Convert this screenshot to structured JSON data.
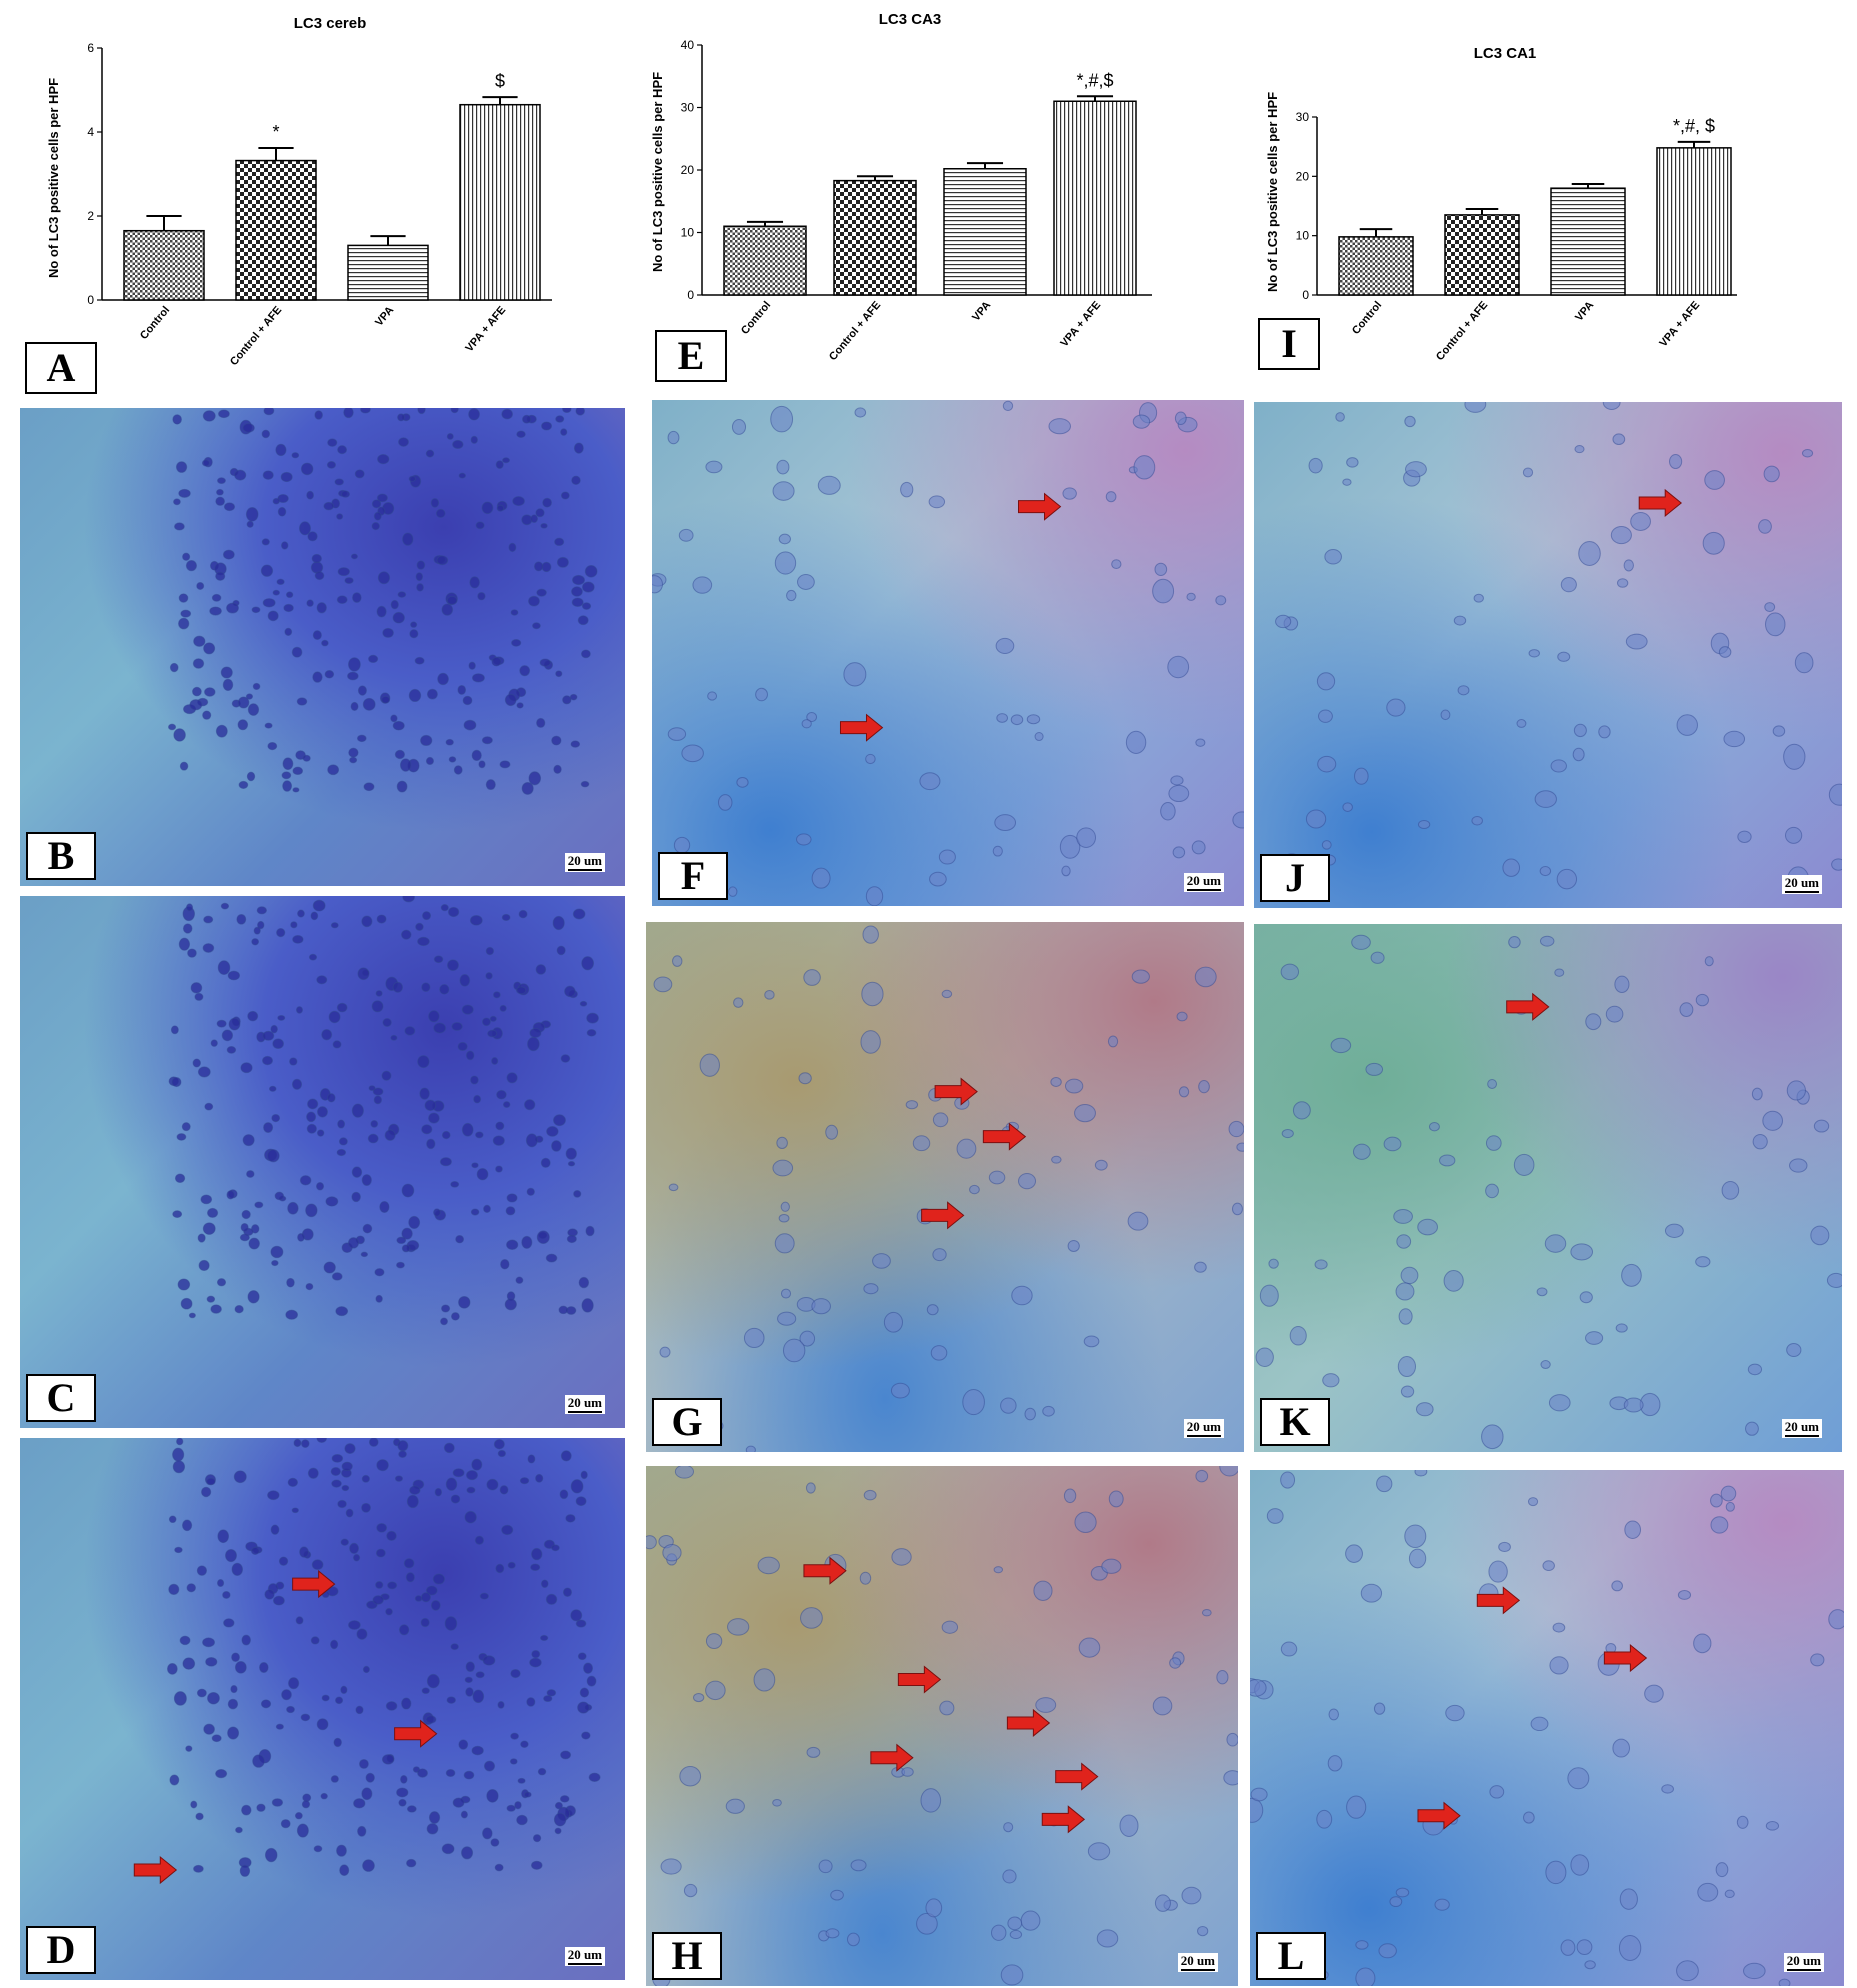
{
  "chart_data": [
    {
      "type": "bar",
      "panel": "A",
      "title": "LC3 cereb",
      "ylabel": "No of LC3 positive cells per HPF",
      "xlabel": "",
      "categories": [
        "Control",
        "Control + AFE",
        "VPA",
        "VPA + AFE"
      ],
      "values": [
        1.65,
        3.32,
        1.3,
        4.65
      ],
      "errors": [
        0.35,
        0.3,
        0.22,
        0.18
      ],
      "annotations": [
        "",
        "*",
        "",
        "$"
      ],
      "ylim": [
        0,
        6
      ],
      "yticks": [
        0,
        2,
        4,
        6
      ],
      "grid": false
    },
    {
      "type": "bar",
      "panel": "E",
      "title": "LC3 CA3",
      "ylabel": "No of LC3 positive cells per HPF",
      "xlabel": "",
      "categories": [
        "Control",
        "Control + AFE",
        "VPA",
        "VPA + AFE"
      ],
      "values": [
        11.0,
        18.3,
        20.2,
        31.0
      ],
      "errors": [
        0.7,
        0.7,
        0.9,
        0.8
      ],
      "annotations": [
        "",
        "",
        "",
        "*,#,$"
      ],
      "ylim": [
        0,
        40
      ],
      "yticks": [
        0,
        10,
        20,
        30,
        40
      ],
      "grid": false
    },
    {
      "type": "bar",
      "panel": "I",
      "title": "LC3 CA1",
      "ylabel": "No of LC3 positive cells per HPF",
      "xlabel": "",
      "categories": [
        "Control",
        "Control + AFE",
        "VPA",
        "VPA + AFE"
      ],
      "values": [
        9.8,
        13.5,
        18.0,
        24.8
      ],
      "errors": [
        1.3,
        1.0,
        0.7,
        1.0
      ],
      "annotations": [
        "",
        "",
        "",
        "*,#, $"
      ],
      "ylim": [
        0,
        30
      ],
      "yticks": [
        0,
        10,
        20,
        30
      ],
      "grid": false
    }
  ],
  "panel_letters": {
    "a": "A",
    "e": "E",
    "i": "I"
  },
  "micrographs": [
    {
      "letter": "B",
      "scale": "20 um",
      "theme": "cereb",
      "arrows": []
    },
    {
      "letter": "C",
      "scale": "20 um",
      "theme": "cereb",
      "arrows": []
    },
    {
      "letter": "D",
      "scale": "20 um",
      "theme": "cereb",
      "arrows": [
        3
      ]
    },
    {
      "letter": "F",
      "scale": "20 um",
      "theme": "hippo",
      "arrows": [
        2
      ]
    },
    {
      "letter": "G",
      "scale": "20 um",
      "theme": "hippo-brown",
      "arrows": [
        3
      ]
    },
    {
      "letter": "H",
      "scale": "20 um",
      "theme": "hippo-brown",
      "arrows": [
        6
      ]
    },
    {
      "letter": "J",
      "scale": "20 um",
      "theme": "hippo",
      "arrows": [
        1
      ]
    },
    {
      "letter": "K",
      "scale": "20 um",
      "theme": "hippo-green",
      "arrows": [
        1
      ]
    },
    {
      "letter": "L",
      "scale": "20 um",
      "theme": "hippo",
      "arrows": [
        3
      ]
    }
  ],
  "colors": {
    "arrow": "#e0231c",
    "bar_edge": "#000000"
  }
}
